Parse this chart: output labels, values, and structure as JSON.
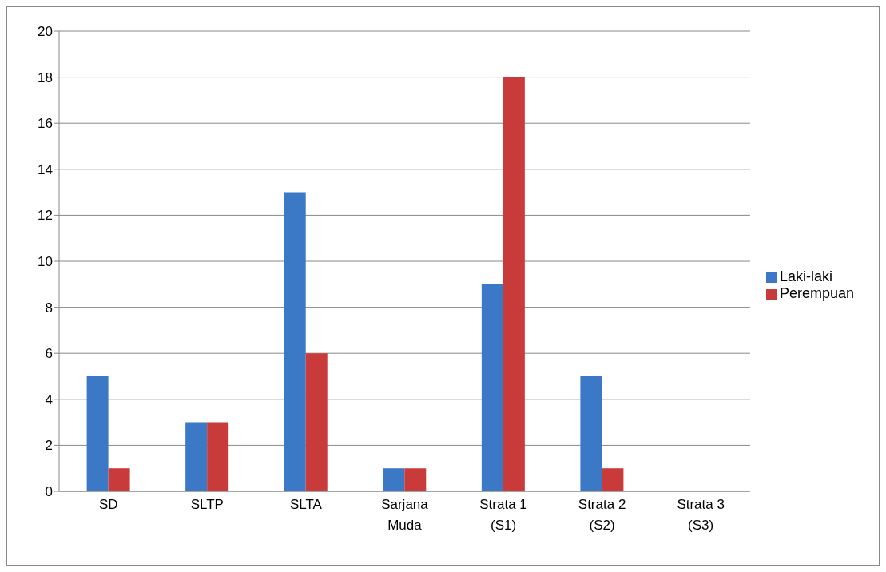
{
  "chart_data": {
    "type": "bar",
    "categories": [
      "SD",
      "SLTP",
      "SLTA",
      "Sarjana Muda",
      "Strata 1 (S1)",
      "Strata 2 (S2)",
      "Strata 3 (S3)"
    ],
    "series": [
      {
        "name": "Laki-laki",
        "color": "#3b78c6",
        "values": [
          5,
          3,
          13,
          1,
          9,
          5,
          0
        ]
      },
      {
        "name": "Perempuan",
        "color": "#c93b3a",
        "values": [
          1,
          3,
          6,
          1,
          18,
          1,
          0
        ]
      }
    ],
    "ylim": [
      0,
      20
    ],
    "yticks": [
      0,
      2,
      4,
      6,
      8,
      10,
      12,
      14,
      16,
      18,
      20
    ],
    "grid": "y",
    "legend": "right"
  }
}
